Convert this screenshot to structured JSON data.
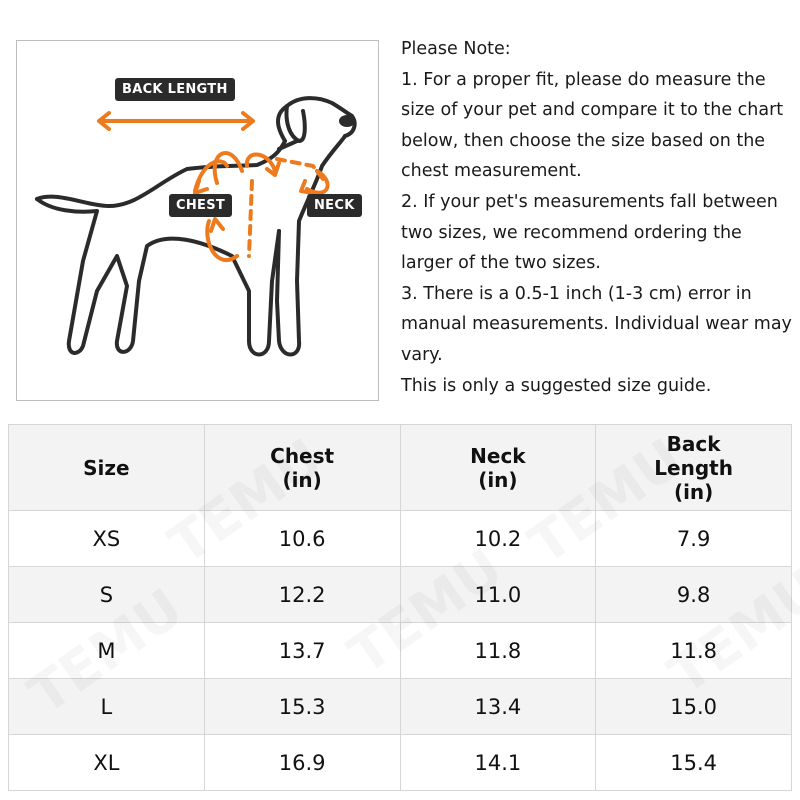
{
  "figure": {
    "labels": {
      "back_length": "BACK LENGTH",
      "chest": "CHEST",
      "neck": "NECK"
    },
    "accent_color": "#ee7a1e",
    "tag_color": "#2b2b2b"
  },
  "note": {
    "title": "Please Note:",
    "lines": [
      "1. For a proper fit, please do measure the size of your pet and compare it to the chart below, then choose the size based on the chest measurement.",
      "2. If your pet's measurements fall between two sizes, we recommend ordering the larger of the two sizes.",
      "3. There is a 0.5-1 inch (1-3 cm) error in manual measurements. Individual wear may vary.",
      "This is only a suggested size guide."
    ]
  },
  "table": {
    "headers": [
      "Size",
      "Chest\n(in)",
      "Neck\n(in)",
      "Back\nLength\n(in)"
    ],
    "rows": [
      [
        "XS",
        "10.6",
        "10.2",
        "7.9"
      ],
      [
        "S",
        "12.2",
        "11.0",
        "9.8"
      ],
      [
        "M",
        "13.7",
        "11.8",
        "11.8"
      ],
      [
        "L",
        "15.3",
        "13.4",
        "15.0"
      ],
      [
        "XL",
        "16.9",
        "14.1",
        "15.4"
      ]
    ]
  },
  "watermark": "TEMU"
}
